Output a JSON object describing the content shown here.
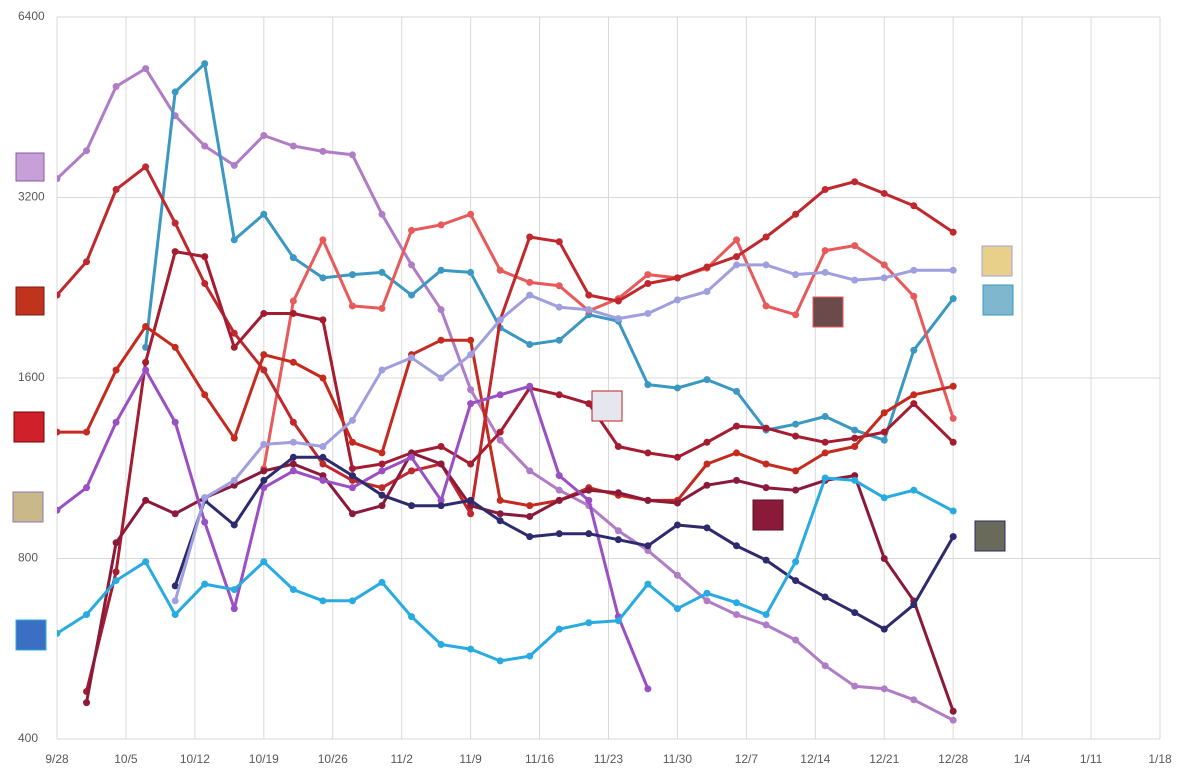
{
  "chart_data": {
    "type": "line",
    "log_scale": true,
    "grid": true,
    "xlim": [
      0,
      112
    ],
    "ylim": [
      400,
      6400
    ],
    "yticks": [
      400,
      800,
      1600,
      3200,
      6400
    ],
    "xticks": [
      {
        "value": 0,
        "label": "9/28"
      },
      {
        "value": 7,
        "label": "10/5"
      },
      {
        "value": 14,
        "label": "10/12"
      },
      {
        "value": 21,
        "label": "10/19"
      },
      {
        "value": 28,
        "label": "10/26"
      },
      {
        "value": 35,
        "label": "11/2"
      },
      {
        "value": 42,
        "label": "11/9"
      },
      {
        "value": 49,
        "label": "11/16"
      },
      {
        "value": 56,
        "label": "11/23"
      },
      {
        "value": 63,
        "label": "11/30"
      },
      {
        "value": 70,
        "label": "12/7"
      },
      {
        "value": 77,
        "label": "12/14"
      },
      {
        "value": 84,
        "label": "12/21"
      },
      {
        "value": 91,
        "label": "12/28"
      },
      {
        "value": 98,
        "label": "1/4"
      },
      {
        "value": 105,
        "label": "1/11"
      },
      {
        "value": 112,
        "label": "1/18"
      }
    ],
    "x": [
      0,
      3,
      6,
      9,
      12,
      15,
      18,
      21,
      24,
      27,
      30,
      33,
      36,
      39,
      42,
      45,
      48,
      51,
      54,
      57,
      60,
      63,
      66,
      69,
      72,
      75,
      78,
      81,
      84,
      87,
      91
    ],
    "series": [
      {
        "color": "#b07cc6",
        "values": [
          3440,
          3830,
          4900,
          5250,
          4380,
          3900,
          3620,
          4060,
          3900,
          3820,
          3770,
          3000,
          2470,
          2080,
          1530,
          1260,
          1120,
          1040,
          980,
          890,
          825,
          750,
          680,
          645,
          620,
          585,
          530,
          490,
          485,
          465,
          430
        ]
      },
      {
        "color": "#3a98c2",
        "values": [
          null,
          null,
          null,
          1800,
          4800,
          5350,
          2720,
          3000,
          2540,
          2350,
          2380,
          2400,
          2200,
          2420,
          2400,
          1940,
          1820,
          1850,
          2040,
          1990,
          1560,
          1540,
          1590,
          1520,
          1310,
          1340,
          1380,
          1310,
          1260,
          1780,
          2170
        ]
      },
      {
        "color": "#e85a5a",
        "values": [
          null,
          null,
          null,
          null,
          null,
          null,
          null,
          1130,
          2150,
          2720,
          2110,
          2090,
          2820,
          2880,
          3000,
          2420,
          2310,
          2280,
          2070,
          2170,
          2380,
          2350,
          2440,
          2720,
          2110,
          2040,
          2610,
          2660,
          2470,
          2190,
          1370
        ]
      },
      {
        "color": "#c0282d",
        "values": [
          2200,
          2500,
          3300,
          3600,
          2900,
          2300,
          1900,
          1650,
          1350,
          1150,
          1080,
          1050,
          1120,
          1150,
          950,
          2000,
          2750,
          2700,
          2200,
          2150,
          2300,
          2350,
          2450,
          2550,
          2750,
          3000,
          3300,
          3400,
          3250,
          3100,
          2800
        ]
      },
      {
        "color": "#a51c30",
        "values": [
          null,
          480,
          760,
          1700,
          2600,
          2550,
          1800,
          2050,
          2050,
          2000,
          1130,
          1150,
          1200,
          1230,
          1150,
          1300,
          1540,
          1500,
          1450,
          1230,
          1200,
          1180,
          1250,
          1330,
          1320,
          1280,
          1250,
          1270,
          1300,
          1450,
          1250
        ]
      },
      {
        "color": "#c52a1e",
        "values": [
          1300,
          1300,
          1650,
          1950,
          1800,
          1500,
          1270,
          1750,
          1700,
          1600,
          1250,
          1200,
          1750,
          1850,
          1850,
          1000,
          980,
          1000,
          1050,
          1020,
          1000,
          1000,
          1150,
          1200,
          1150,
          1120,
          1200,
          1230,
          1400,
          1500,
          1550
        ]
      },
      {
        "color": "#8b1a3a",
        "values": [
          null,
          460,
          850,
          1000,
          950,
          1010,
          1060,
          1120,
          1150,
          1100,
          950,
          980,
          1200,
          1150,
          980,
          950,
          940,
          1000,
          1040,
          1030,
          1000,
          990,
          1060,
          1080,
          1050,
          1040,
          1080,
          1100,
          800,
          680,
          445
        ]
      },
      {
        "color": "#9b4fc4",
        "values": [
          963,
          1050,
          1350,
          1650,
          1350,
          920,
          660,
          1050,
          1120,
          1080,
          1050,
          1120,
          1180,
          1000,
          1450,
          1500,
          1550,
          1100,
          1000,
          640,
          485,
          null,
          null,
          null,
          null,
          null,
          null,
          null,
          null,
          null,
          null
        ]
      },
      {
        "color": "#2e2a6e",
        "values": [
          null,
          null,
          null,
          null,
          720,
          1000,
          910,
          1080,
          1180,
          1180,
          1100,
          1020,
          980,
          980,
          1000,
          925,
          870,
          880,
          880,
          860,
          840,
          910,
          900,
          840,
          795,
          735,
          690,
          650,
          610,
          670,
          870
        ]
      },
      {
        "color": "#9f9fdf",
        "values": [
          null,
          null,
          null,
          null,
          680,
          1010,
          1080,
          1240,
          1250,
          1230,
          1360,
          1650,
          1730,
          1600,
          1750,
          2000,
          2200,
          2100,
          2080,
          2010,
          2050,
          2160,
          2230,
          2470,
          2470,
          2380,
          2400,
          2330,
          2350,
          2420,
          2420
        ]
      },
      {
        "color": "#29abe2",
        "values": [
          600,
          645,
          735,
          790,
          645,
          725,
          710,
          790,
          710,
          680,
          680,
          730,
          640,
          575,
          565,
          540,
          550,
          610,
          625,
          630,
          725,
          660,
          700,
          675,
          645,
          790,
          1090,
          1080,
          1010,
          1040,
          960
        ]
      }
    ]
  }
}
